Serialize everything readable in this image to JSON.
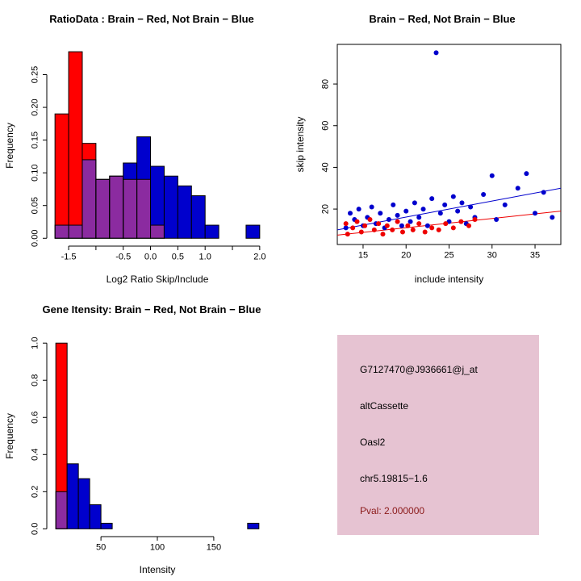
{
  "accent_colors": {
    "brain_red": "#FF0000",
    "not_brain_blue": "#0000CD",
    "overlap_purple": "#8B2BA0",
    "info_box_pink": "#E6C3D2",
    "pval_dark_red": "#8B1A1A"
  },
  "chart_data": [
    {
      "id": "ratio-hist",
      "type": "bar",
      "title": "RatioData : Brain − Red, Not Brain − Blue",
      "xlabel": "Log2 Ratio Skip/Include",
      "ylabel": "Frequency",
      "legend": "overlaid histograms; Brain = red, Not Brain = blue, overlap = purple",
      "bin_start": -1.75,
      "bin_width": 0.25,
      "series": [
        {
          "name": "Brain",
          "color": "#FF0000",
          "values": [
            0.19,
            0.285,
            0.145,
            0.09,
            0.095,
            0.09,
            0.09,
            0.02,
            0,
            0,
            0,
            0,
            0,
            0,
            0
          ]
        },
        {
          "name": "Not Brain",
          "color": "#0000CD",
          "values": [
            0.02,
            0.02,
            0.12,
            0.09,
            0.095,
            0.115,
            0.155,
            0.11,
            0.095,
            0.08,
            0.065,
            0.02,
            0,
            0,
            0.02
          ]
        }
      ],
      "overlap_color": "#8B2BA0",
      "xlim": [
        -1.9,
        2.15
      ],
      "ylim": [
        -0.012,
        0.295
      ],
      "xticks": [
        -1.5,
        -1.0,
        -0.5,
        0.0,
        0.5,
        1.0,
        1.5,
        2.0
      ],
      "xtick_labels": [
        "-1.5",
        "",
        "-0.5",
        "0.0",
        "0.5",
        "1.0",
        "",
        "2.0"
      ],
      "yticks": [
        0,
        0.05,
        0.1,
        0.15,
        0.2,
        0.25
      ],
      "ytick_labels": [
        "0.00",
        "0.05",
        "0.10",
        "0.15",
        "0.20",
        "0.25"
      ],
      "grid": false
    },
    {
      "id": "scatter",
      "type": "scatter",
      "title": "Brain − Red, Not Brain − Blue",
      "xlabel": "include intensity",
      "ylabel": "skip intensity",
      "xlim": [
        12,
        38
      ],
      "ylim": [
        3,
        99
      ],
      "xticks": [
        15,
        20,
        25,
        30,
        35
      ],
      "yticks": [
        20,
        40,
        60,
        80
      ],
      "series": [
        {
          "name": "Not Brain",
          "color": "#0000CD",
          "points": [
            [
              13,
              11
            ],
            [
              13.5,
              18
            ],
            [
              14,
              15
            ],
            [
              14.5,
              20
            ],
            [
              15,
              12
            ],
            [
              15.5,
              16
            ],
            [
              16,
              21
            ],
            [
              16.5,
              13
            ],
            [
              17,
              18
            ],
            [
              17.5,
              11
            ],
            [
              18,
              15
            ],
            [
              18.5,
              22
            ],
            [
              19,
              17
            ],
            [
              19.5,
              12
            ],
            [
              20,
              19
            ],
            [
              20.5,
              14
            ],
            [
              21,
              23
            ],
            [
              21.5,
              16
            ],
            [
              22,
              20
            ],
            [
              22.5,
              12
            ],
            [
              23,
              25
            ],
            [
              23.5,
              95
            ],
            [
              24,
              18
            ],
            [
              24.5,
              22
            ],
            [
              25,
              14
            ],
            [
              25.5,
              26
            ],
            [
              26,
              19
            ],
            [
              26.5,
              23
            ],
            [
              27,
              13
            ],
            [
              27.5,
              21
            ],
            [
              28,
              16
            ],
            [
              29,
              27
            ],
            [
              30,
              36
            ],
            [
              30.5,
              15
            ],
            [
              31.5,
              22
            ],
            [
              33,
              30
            ],
            [
              34,
              37
            ],
            [
              35,
              18
            ],
            [
              36,
              28
            ],
            [
              37,
              16
            ]
          ]
        },
        {
          "name": "Brain",
          "color": "#EE0000",
          "points": [
            [
              13,
              13
            ],
            [
              13.2,
              8
            ],
            [
              13.8,
              11
            ],
            [
              14.3,
              14
            ],
            [
              14.8,
              9
            ],
            [
              15.2,
              12
            ],
            [
              15.8,
              15
            ],
            [
              16.3,
              10
            ],
            [
              16.8,
              13
            ],
            [
              17.3,
              8
            ],
            [
              17.8,
              12
            ],
            [
              18.4,
              10
            ],
            [
              19,
              14
            ],
            [
              19.6,
              9
            ],
            [
              20.2,
              12
            ],
            [
              20.8,
              10
            ],
            [
              21.5,
              13
            ],
            [
              22.2,
              9
            ],
            [
              23,
              11
            ],
            [
              23.8,
              10
            ],
            [
              24.6,
              13
            ],
            [
              25.5,
              11
            ],
            [
              26.4,
              14
            ],
            [
              27.3,
              12
            ],
            [
              28,
              15
            ]
          ]
        }
      ],
      "lines": [
        {
          "name": "not-brain-fit",
          "color": "#0000CD",
          "x": [
            12,
            38
          ],
          "y": [
            10,
            30
          ]
        },
        {
          "name": "brain-fit",
          "color": "#EE0000",
          "x": [
            12,
            38
          ],
          "y": [
            7.5,
            19
          ]
        }
      ],
      "grid": false
    },
    {
      "id": "gene-hist",
      "type": "bar",
      "title": "Gene Itensity: Brain − Red, Not Brain − Blue",
      "xlabel": "Intensity",
      "ylabel": "Frequency",
      "bin_start": 10,
      "bin_width": 10,
      "series": [
        {
          "name": "Brain",
          "color": "#FF0000",
          "values": [
            1.0,
            0,
            0,
            0,
            0,
            0,
            0,
            0,
            0,
            0,
            0,
            0,
            0,
            0,
            0,
            0,
            0,
            0
          ]
        },
        {
          "name": "Not Brain",
          "color": "#0000CD",
          "values": [
            0.2,
            0.35,
            0.27,
            0.13,
            0.03,
            0,
            0,
            0,
            0,
            0,
            0,
            0,
            0,
            0,
            0,
            0,
            0,
            0.03
          ]
        }
      ],
      "overlap_color": "#8B2BA0",
      "xlim": [
        2,
        198
      ],
      "ylim": [
        -0.042,
        1.04
      ],
      "xticks": [
        50,
        100,
        150
      ],
      "xtick_labels": [
        "50",
        "100",
        "150"
      ],
      "yticks": [
        0,
        0.2,
        0.4,
        0.6,
        0.8,
        1.0
      ],
      "ytick_labels": [
        "0.0",
        "0.2",
        "0.4",
        "0.6",
        "0.8",
        "1.0"
      ],
      "grid": false
    }
  ],
  "info_box": {
    "bg_style": "background:#E6C3D2",
    "lines": [
      "G7127470@J936661@j_at",
      "altCassette",
      "Oasl2",
      "chr5.19815−1.6"
    ],
    "pval": "Pval: 2.000000",
    "pval_style": "color:#8B1A1A"
  }
}
